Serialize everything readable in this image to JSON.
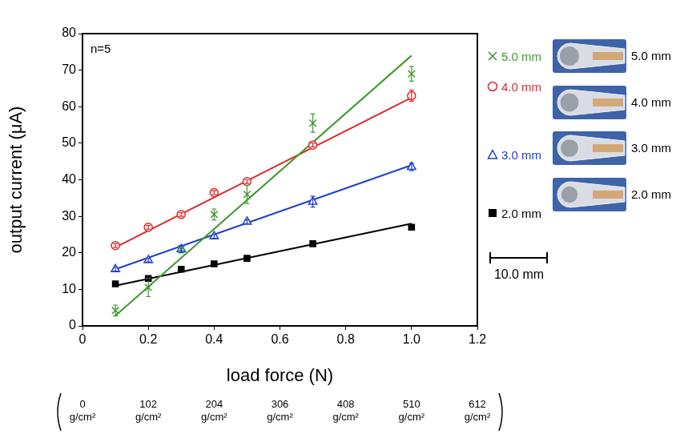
{
  "chart_data": {
    "type": "scatter",
    "x_label": "load force (N)",
    "y_label": "output current (μA)",
    "annotations": [
      "n=5"
    ],
    "x": [
      0.1,
      0.2,
      0.3,
      0.4,
      0.5,
      0.7,
      1.0
    ],
    "series": [
      {
        "name": "5.0 mm",
        "color": "#3e9a2e",
        "marker": "x",
        "values": [
          4.2,
          10.5,
          21,
          30.5,
          36,
          55.5,
          69
        ],
        "errors": [
          1.5,
          2.5,
          1,
          1.5,
          2.5,
          2.5,
          2
        ],
        "trend_line": {
          "x": [
            0.1,
            1.0
          ],
          "values": [
            2.8,
            74
          ]
        }
      },
      {
        "name": "4.0 mm",
        "color": "#e02828",
        "marker": "open_circle",
        "values": [
          22,
          27,
          30.5,
          36.5,
          39.5,
          49.5,
          63
        ],
        "errors": [
          0.5,
          0.5,
          0.5,
          0.5,
          0.5,
          0.5,
          1.5
        ],
        "trend_line": {
          "x": [
            0.1,
            1.0
          ],
          "values": [
            21.5,
            62.5
          ]
        }
      },
      {
        "name": "3.0 mm",
        "color": "#2040d0",
        "marker": "open_triangle",
        "values": [
          15.5,
          18,
          21,
          24.5,
          28.5,
          34,
          43.5
        ],
        "errors": [
          0.5,
          0.5,
          1,
          0.5,
          0.5,
          1.5,
          1
        ],
        "trend_line": {
          "x": [
            0.1,
            1.0
          ],
          "values": [
            15.5,
            44
          ]
        }
      },
      {
        "name": "2.0 mm",
        "color": "#000000",
        "marker": "filled_square",
        "values": [
          11.5,
          13,
          15.5,
          17,
          18.5,
          22.5,
          27
        ],
        "errors": [
          0.5,
          0.5,
          0.5,
          0.5,
          0.5,
          0.5,
          0.5
        ],
        "trend_line": {
          "x": [
            0.1,
            1.0
          ],
          "values": [
            11,
            28
          ]
        }
      }
    ],
    "xlim": [
      0,
      1.2
    ],
    "xticks": [
      0,
      0.2,
      0.4,
      0.6,
      0.8,
      {
        "value": 1,
        "label": "1.0"
      },
      1.2
    ],
    "ylim": [
      0,
      80
    ],
    "yticks": [
      0,
      10,
      20,
      30,
      40,
      50,
      60,
      70,
      80
    ],
    "x2lim": [
      0,
      612
    ],
    "x2ticks": [
      {
        "value": 0,
        "label": "0 g/cm²"
      },
      {
        "value": 102,
        "label": "102 g/cm²"
      },
      {
        "value": 204,
        "label": "204 g/cm²"
      },
      {
        "value": 306,
        "label": "306 g/cm²"
      },
      {
        "value": 408,
        "label": "408 g/cm²"
      },
      {
        "value": 510,
        "label": "510 g/cm²"
      },
      {
        "value": 612,
        "label": "612 g/cm²"
      }
    ],
    "grid": false,
    "legend": "right"
  },
  "figure": {
    "photo_labels": [
      "5.0 mm",
      "4.0 mm",
      "3.0 mm",
      "2.0 mm"
    ],
    "scale_bar_label": "10.0 mm"
  }
}
